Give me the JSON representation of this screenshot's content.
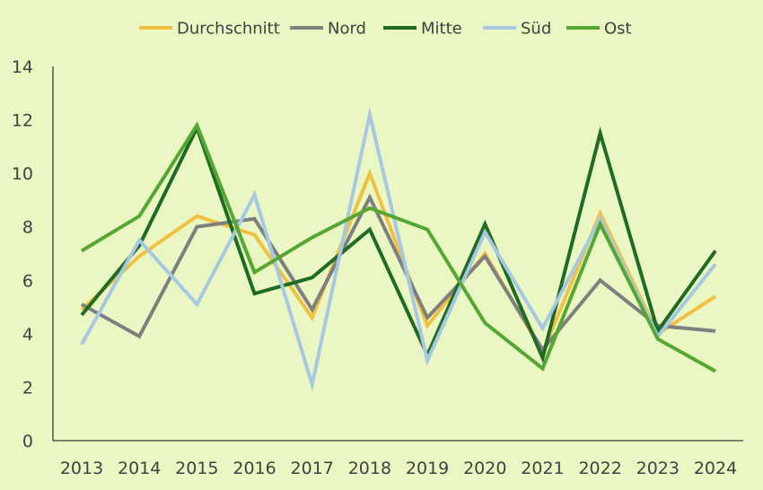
{
  "chart_data": {
    "type": "line",
    "title": "",
    "xlabel": "",
    "ylabel": "",
    "categories": [
      "2013",
      "2014",
      "2015",
      "2016",
      "2017",
      "2018",
      "2019",
      "2020",
      "2021",
      "2022",
      "2023",
      "2024"
    ],
    "ylim": [
      0,
      14
    ],
    "yticks": [
      "0",
      "2",
      "4",
      "6",
      "8",
      "10",
      "12",
      "14"
    ],
    "grid": false,
    "legend_position": "top",
    "series": [
      {
        "name": "Durchschnitt",
        "color": "#f0c040",
        "values": [
          4.9,
          6.9,
          8.4,
          7.7,
          4.6,
          10.0,
          4.3,
          7.0,
          3.3,
          8.5,
          4.0,
          5.4
        ]
      },
      {
        "name": "Nord",
        "color": "#7f7f7f",
        "values": [
          5.1,
          3.9,
          8.0,
          8.3,
          4.9,
          9.1,
          4.6,
          6.9,
          3.4,
          6.0,
          4.3,
          4.1
        ]
      },
      {
        "name": "Mitte",
        "color": "#1e6b23",
        "values": [
          4.7,
          7.3,
          11.7,
          5.5,
          6.1,
          7.9,
          3.2,
          8.1,
          3.1,
          11.5,
          4.1,
          7.1
        ]
      },
      {
        "name": "Süd",
        "color": "#a6c8e2",
        "values": [
          3.6,
          7.5,
          5.1,
          9.2,
          2.1,
          12.2,
          3.0,
          7.8,
          4.2,
          8.3,
          3.9,
          6.6
        ]
      },
      {
        "name": "Ost",
        "color": "#54a832",
        "values": [
          7.1,
          8.4,
          11.8,
          6.3,
          7.6,
          8.7,
          7.9,
          4.4,
          2.7,
          8.1,
          3.8,
          2.6
        ]
      }
    ]
  }
}
